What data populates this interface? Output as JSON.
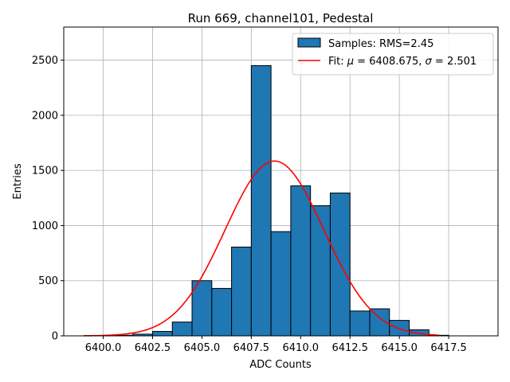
{
  "chart_data": {
    "type": "bar",
    "title": "Run 669, channel101, Pedestal",
    "xlabel": "ADC Counts",
    "ylabel": "Entries",
    "xlim": [
      6398.0,
      6420.0
    ],
    "ylim": [
      0,
      2800
    ],
    "grid": true,
    "legend_position": "top-right",
    "x_ticks": [
      6400.0,
      6402.5,
      6405.0,
      6407.5,
      6410.0,
      6412.5,
      6415.0,
      6417.5
    ],
    "x_tick_labels": [
      "6400.0",
      "6402.5",
      "6405.0",
      "6407.5",
      "6410.0",
      "6412.5",
      "6415.0",
      "6417.5"
    ],
    "y_ticks": [
      0,
      500,
      1000,
      1500,
      2000,
      2500
    ],
    "y_tick_labels": [
      "0",
      "500",
      "1000",
      "1500",
      "2000",
      "2500"
    ],
    "histogram": {
      "name": "Samples: RMS=2.45",
      "color": "#1f77b4",
      "edge_color": "#000000",
      "bin_width": 1.0,
      "bin_centers": [
        6400,
        6401,
        6402,
        6403,
        6404,
        6405,
        6406,
        6407,
        6408,
        6409,
        6410,
        6411,
        6412,
        6413,
        6414,
        6415,
        6416,
        6417,
        6418
      ],
      "values": [
        2,
        5,
        15,
        40,
        125,
        500,
        430,
        805,
        2450,
        945,
        1360,
        1180,
        1295,
        225,
        245,
        140,
        55,
        5,
        0
      ]
    },
    "fit": {
      "name_prefix": "Fit: ",
      "mu_label": "μ",
      "mu_value": "6408.675",
      "sigma_label": "σ",
      "sigma_value": "2.501",
      "color": "#ff0000",
      "mu": 6408.675,
      "sigma": 2.501,
      "amplitude": 1585,
      "x_range": [
        6399.0,
        6417.0
      ]
    }
  }
}
